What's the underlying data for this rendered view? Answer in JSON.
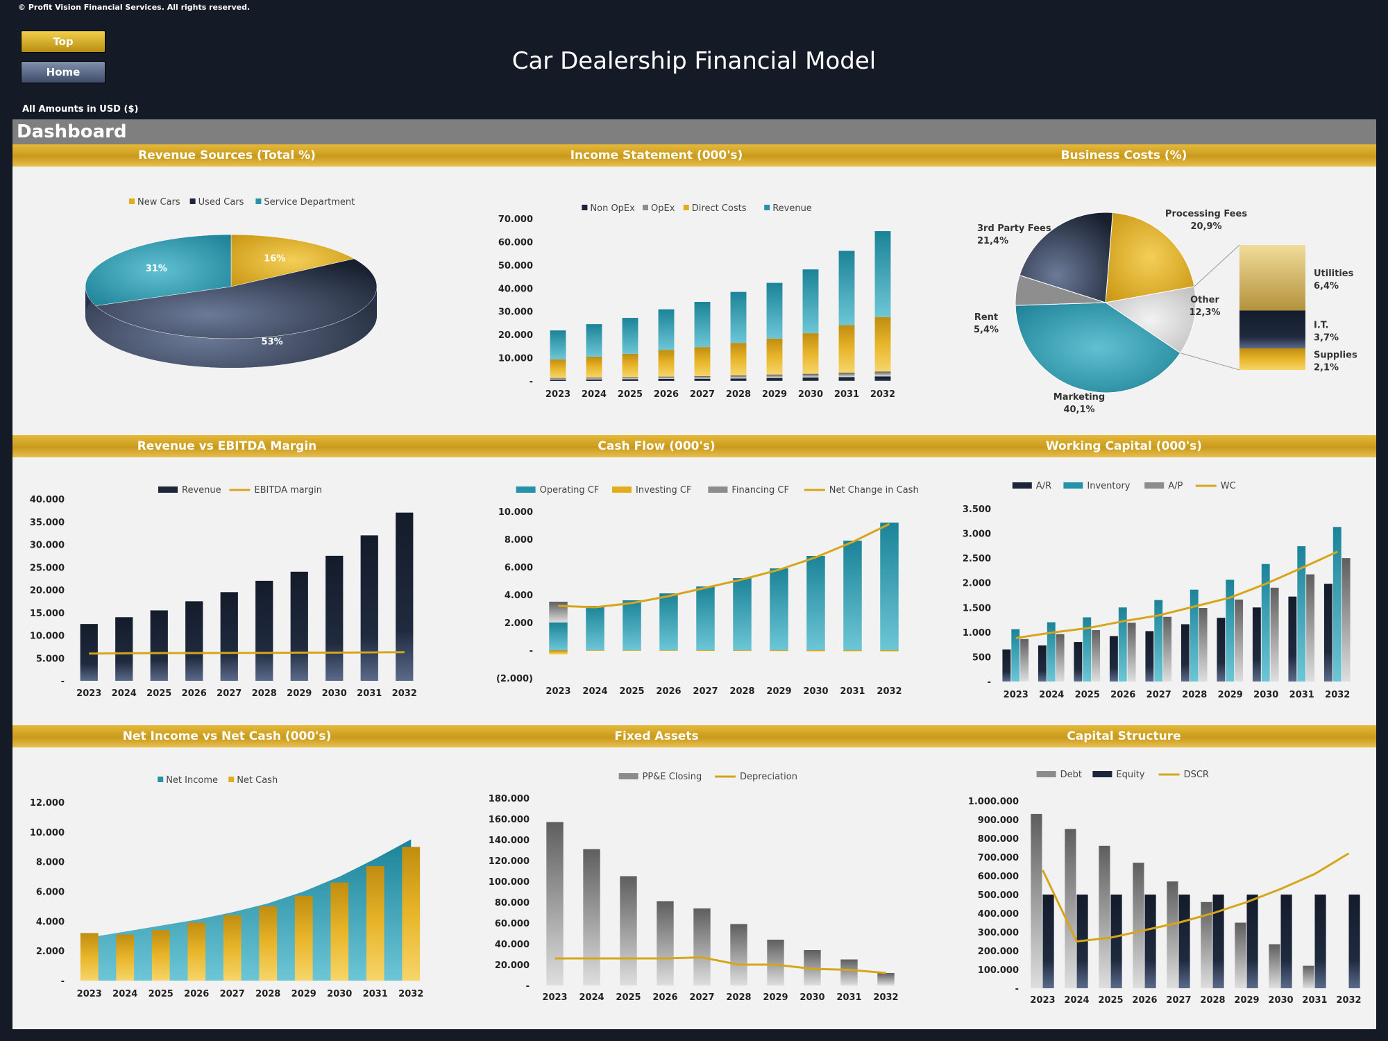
{
  "header": {
    "copyright": "© Profit Vision Financial Services. All rights reserved.",
    "top_button": "Top",
    "home_button": "Home",
    "title": "Car Dealership Financial Model",
    "currency_note": "All Amounts in  USD ($)",
    "dashboard_label": "Dashboard"
  },
  "colors": {
    "gold": "#e3ac1c",
    "navy": "#1c2638",
    "teal": "#2592a8",
    "gray": "#8c8c8c",
    "light_gray": "#d4d4d4",
    "line_gold": "#d7a51a"
  },
  "chart_data": [
    {
      "type": "pie",
      "title": "Revenue Sources (Total %)",
      "legend": [
        "New Cars",
        "Used Cars",
        "Service Department"
      ],
      "slices": [
        {
          "label": "New Cars",
          "value": 16,
          "text": "16%"
        },
        {
          "label": "Used Cars",
          "value": 53,
          "text": "53%"
        },
        {
          "label": "Service Department",
          "value": 31,
          "text": "31%"
        }
      ]
    },
    {
      "type": "bar",
      "stacked": true,
      "title": "Income Statement (000's)",
      "categories": [
        "2023",
        "2024",
        "2025",
        "2026",
        "2027",
        "2028",
        "2029",
        "2030",
        "2031",
        "2032"
      ],
      "ylim": [
        0,
        70000
      ],
      "yticks": [
        "-",
        "10.000",
        "20.000",
        "30.000",
        "40.000",
        "50.000",
        "60.000",
        "70.000"
      ],
      "legend": [
        "Non OpEx",
        "OpEx",
        "Direct Costs",
        "Revenue"
      ],
      "series": [
        {
          "name": "Non OpEx",
          "values": [
            600,
            700,
            800,
            900,
            1000,
            1100,
            1300,
            1500,
            1700,
            2000
          ]
        },
        {
          "name": "OpEx",
          "values": [
            700,
            800,
            900,
            1000,
            1100,
            1300,
            1500,
            1600,
            1900,
            2100
          ]
        },
        {
          "name": "Direct Costs",
          "values": [
            8000,
            9000,
            10000,
            11500,
            12500,
            14000,
            15500,
            17500,
            20500,
            23500
          ]
        },
        {
          "name": "Revenue",
          "values": [
            12500,
            14000,
            15500,
            17500,
            19500,
            22000,
            24000,
            27500,
            32000,
            37000
          ]
        }
      ]
    },
    {
      "type": "pie",
      "title": "Business Costs (%)",
      "slices": [
        {
          "label": "Processing Fees",
          "value": 20.9,
          "text": "20,9%"
        },
        {
          "label": "Other",
          "value": 12.3,
          "text": "12,3%"
        },
        {
          "label": "Marketing",
          "value": 40.1,
          "text": "40,1%"
        },
        {
          "label": "Rent",
          "value": 5.4,
          "text": "5,4%"
        },
        {
          "label": "3rd Party Fees",
          "value": 21.4,
          "text": "21,4%"
        }
      ],
      "other_breakdown": [
        {
          "label": "Utilities",
          "value": 6.4,
          "text": "6,4%"
        },
        {
          "label": "I.T.",
          "value": 3.7,
          "text": "3,7%"
        },
        {
          "label": "Supplies",
          "value": 2.1,
          "text": "2,1%"
        }
      ]
    },
    {
      "type": "bar",
      "title": "Revenue vs EBITDA Margin",
      "categories": [
        "2023",
        "2024",
        "2025",
        "2026",
        "2027",
        "2028",
        "2029",
        "2030",
        "2031",
        "2032"
      ],
      "ylim": [
        0,
        40000
      ],
      "yticks": [
        "-",
        "5.000",
        "10.000",
        "15.000",
        "20.000",
        "25.000",
        "30.000",
        "35.000",
        "40.000"
      ],
      "legend": [
        "Revenue",
        "EBITDA margin"
      ],
      "series": [
        {
          "name": "Revenue",
          "type": "bar",
          "values": [
            12500,
            14000,
            15500,
            17500,
            19500,
            22000,
            24000,
            27500,
            32000,
            37000
          ]
        },
        {
          "name": "EBITDA margin",
          "type": "line",
          "values": [
            6000,
            6050,
            6100,
            6100,
            6150,
            6150,
            6200,
            6200,
            6250,
            6300
          ]
        }
      ]
    },
    {
      "type": "bar",
      "stacked": true,
      "title": "Cash Flow (000's)",
      "categories": [
        "2023",
        "2024",
        "2025",
        "2026",
        "2027",
        "2028",
        "2029",
        "2030",
        "2031",
        "2032"
      ],
      "ylim": [
        -2000,
        10000
      ],
      "yticks": [
        "(2.000)",
        "-",
        "2.000",
        "4.000",
        "6.000",
        "8.000",
        "10.000"
      ],
      "legend": [
        "Operating CF",
        "Investing CF",
        "Financing CF",
        "Net Change in Cash"
      ],
      "series": [
        {
          "name": "Operating CF",
          "values": [
            2000,
            3200,
            3600,
            4100,
            4600,
            5200,
            5900,
            6800,
            7900,
            9200
          ]
        },
        {
          "name": "Investing CF",
          "values": [
            -300,
            -50,
            -50,
            -50,
            -60,
            -60,
            -70,
            -80,
            -80,
            -90
          ]
        },
        {
          "name": "Financing CF",
          "values": [
            1500,
            0,
            0,
            0,
            0,
            0,
            0,
            0,
            0,
            0
          ]
        },
        {
          "name": "Net Change in Cash",
          "type": "line",
          "values": [
            3200,
            3100,
            3400,
            3900,
            4500,
            5100,
            5800,
            6700,
            7800,
            9100
          ]
        }
      ]
    },
    {
      "type": "bar",
      "title": "Working Capital (000's)",
      "categories": [
        "2023",
        "2024",
        "2025",
        "2026",
        "2027",
        "2028",
        "2029",
        "2030",
        "2031",
        "2032"
      ],
      "ylim": [
        0,
        3500
      ],
      "yticks": [
        "-",
        "500",
        "1.000",
        "1.500",
        "2.000",
        "2.500",
        "3.000",
        "3.500"
      ],
      "legend": [
        "A/R",
        "Inventory",
        "A/P",
        "WC"
      ],
      "series": [
        {
          "name": "A/R",
          "values": [
            650,
            730,
            800,
            920,
            1020,
            1160,
            1290,
            1500,
            1720,
            1980
          ]
        },
        {
          "name": "Inventory",
          "values": [
            1060,
            1200,
            1300,
            1500,
            1650,
            1860,
            2060,
            2380,
            2740,
            3130
          ]
        },
        {
          "name": "A/P",
          "values": [
            860,
            960,
            1040,
            1190,
            1310,
            1490,
            1660,
            1900,
            2170,
            2500
          ]
        },
        {
          "name": "WC",
          "type": "line",
          "values": [
            880,
            990,
            1080,
            1220,
            1340,
            1520,
            1700,
            1980,
            2300,
            2630
          ]
        }
      ]
    },
    {
      "type": "area",
      "title": "Net Income vs Net Cash (000's)",
      "categories": [
        "2023",
        "2024",
        "2025",
        "2026",
        "2027",
        "2028",
        "2029",
        "2030",
        "2031",
        "2032"
      ],
      "ylim": [
        0,
        12000
      ],
      "yticks": [
        "-",
        "2.000",
        "4.000",
        "6.000",
        "8.000",
        "10.000",
        "12.000"
      ],
      "legend": [
        "Net Income",
        "Net Cash"
      ],
      "series": [
        {
          "name": "Net Income",
          "type": "area",
          "values": [
            2900,
            3300,
            3700,
            4100,
            4600,
            5200,
            6000,
            7000,
            8200,
            9500
          ]
        },
        {
          "name": "Net Cash",
          "type": "bar",
          "values": [
            3200,
            3100,
            3400,
            3900,
            4400,
            5000,
            5700,
            6600,
            7700,
            9000
          ]
        }
      ]
    },
    {
      "type": "bar",
      "title": "Fixed Assets",
      "categories": [
        "2023",
        "2024",
        "2025",
        "2026",
        "2027",
        "2028",
        "2029",
        "2030",
        "2031",
        "2032"
      ],
      "ylim": [
        0,
        180000
      ],
      "yticks": [
        "-",
        "20.000",
        "40.000",
        "60.000",
        "80.000",
        "100.000",
        "120.000",
        "140.000",
        "160.000",
        "180.000"
      ],
      "legend": [
        "PP&E Closing",
        "Depreciation"
      ],
      "series": [
        {
          "name": "PP&E Closing",
          "values": [
            157000,
            131000,
            105000,
            81000,
            74000,
            59000,
            44000,
            34000,
            25000,
            12000
          ]
        },
        {
          "name": "Depreciation",
          "type": "line",
          "values": [
            26000,
            26000,
            26000,
            26000,
            27000,
            20000,
            20000,
            16000,
            15000,
            12000
          ]
        }
      ]
    },
    {
      "type": "bar",
      "title": "Capital Structure",
      "categories": [
        "2023",
        "2024",
        "2025",
        "2026",
        "2027",
        "2028",
        "2029",
        "2030",
        "2031",
        "2032"
      ],
      "ylim": [
        0,
        1000000
      ],
      "yticks": [
        "-",
        "100.000",
        "200.000",
        "300.000",
        "400.000",
        "500.000",
        "600.000",
        "700.000",
        "800.000",
        "900.000",
        "1.000.000"
      ],
      "legend": [
        "Debt",
        "Equity",
        "DSCR"
      ],
      "series": [
        {
          "name": "Debt",
          "values": [
            930000,
            850000,
            760000,
            670000,
            570000,
            460000,
            350000,
            235000,
            120000,
            0
          ]
        },
        {
          "name": "Equity",
          "values": [
            500000,
            500000,
            500000,
            500000,
            500000,
            500000,
            500000,
            500000,
            500000,
            500000
          ]
        },
        {
          "name": "DSCR",
          "type": "line",
          "values": [
            630000,
            250000,
            270000,
            310000,
            350000,
            400000,
            460000,
            530000,
            610000,
            720000
          ]
        }
      ]
    }
  ]
}
